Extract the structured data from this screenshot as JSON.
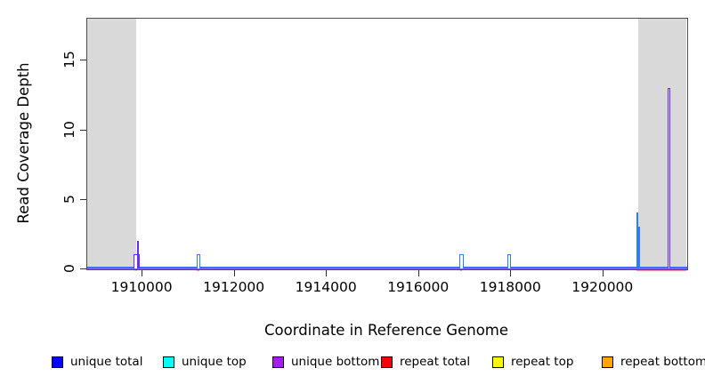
{
  "figure": {
    "background": "#FFFFFF"
  },
  "chart_data": {
    "type": "area",
    "subtype": "genome-read-coverage-step-plot",
    "title": "",
    "xlabel": "Coordinate in Reference Genome",
    "ylabel": "Read Coverage Depth",
    "xlim": [
      1908800,
      1921830
    ],
    "ylim": [
      0,
      18
    ],
    "grid": false,
    "legend_position": "bottom",
    "x_ticks": [
      {
        "value": 1910000,
        "label": "1910000"
      },
      {
        "value": 1912000,
        "label": "1912000"
      },
      {
        "value": 1914000,
        "label": "1914000"
      },
      {
        "value": 1916000,
        "label": "1916000"
      },
      {
        "value": 1918000,
        "label": "1918000"
      },
      {
        "value": 1920000,
        "label": "1920000"
      }
    ],
    "y_ticks": [
      {
        "value": 0,
        "label": "0"
      },
      {
        "value": 5,
        "label": "5"
      },
      {
        "value": 10,
        "label": "10"
      },
      {
        "value": 15,
        "label": "15"
      }
    ],
    "shaded_regions": [
      {
        "x_start": 1908800,
        "x_end": 1909890
      },
      {
        "x_start": 1920780,
        "x_end": 1921830
      }
    ],
    "series_at_zero": [
      "unique total",
      "unique bottom"
    ],
    "peaks": [
      {
        "series": "unique bottom",
        "x_start": 1909830,
        "x_end": 1909965,
        "depth": 1,
        "fill": "white"
      },
      {
        "series": "unique bottom",
        "x_start": 1909898,
        "x_end": 1909932,
        "depth": 2,
        "fill": "solid"
      },
      {
        "series": "unique total",
        "x_start": 1911190,
        "x_end": 1911265,
        "depth": 1,
        "fill": "white"
      },
      {
        "series": "unique total",
        "x_start": 1916900,
        "x_end": 1916990,
        "depth": 1,
        "fill": "white"
      },
      {
        "series": "unique total",
        "x_start": 1917930,
        "x_end": 1918020,
        "depth": 1,
        "fill": "white"
      },
      {
        "series": "unique total",
        "x_start": 1920730,
        "x_end": 1920768,
        "depth": 4,
        "fill": "cyan"
      },
      {
        "series": "unique total",
        "x_start": 1920768,
        "x_end": 1920815,
        "depth": 3,
        "fill": "band"
      },
      {
        "series": "unique bottom",
        "x_start": 1921415,
        "x_end": 1921480,
        "depth": 13,
        "fill": "band"
      }
    ],
    "base_marks": [
      {
        "x_start": 1909840,
        "x_end": 1909895,
        "color": "#CCE39B"
      },
      {
        "x_start": 1911200,
        "x_end": 1911250,
        "color": "#FF9D9D"
      },
      {
        "x_start": 1916905,
        "x_end": 1916955,
        "color": "#FF9D9D"
      },
      {
        "x_start": 1920730,
        "x_end": 1920800,
        "color": "#FF9D9D"
      }
    ],
    "underline_segment": {
      "x_start": 1920730,
      "x_end": 1921830,
      "color": "#FF9D9D"
    }
  },
  "legend": {
    "items": [
      {
        "label": "unique total",
        "color": "#0000FF"
      },
      {
        "label": "unique top",
        "color": "#00FFFF"
      },
      {
        "label": "unique bottom",
        "color": "#A020F0"
      },
      {
        "label": "repeat total",
        "color": "#FF0000"
      },
      {
        "label": "repeat top",
        "color": "#FFFF00"
      },
      {
        "label": "repeat bottom",
        "color": "#FFA500"
      }
    ]
  },
  "colors": {
    "shaded_band": "#D9D9D9",
    "plot_border": "#4d4d4d",
    "line_unique_total": "#2F7DF6",
    "line_unique_bottom": "#6B2EEA",
    "baseline_blue": "#3E6FF4",
    "baseline_purple": "#7B68EE",
    "cyan_fill": "#8FD6FF",
    "axis_text": "#000000"
  }
}
